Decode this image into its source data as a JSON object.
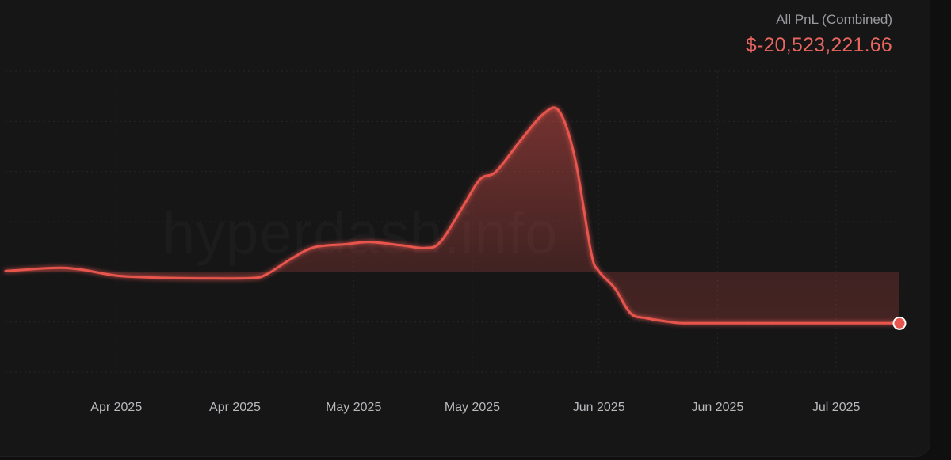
{
  "header": {
    "label": "All PnL (Combined)",
    "value": "$-20,523,221.66"
  },
  "watermark": "hyperdash.info",
  "colors": {
    "line": "#e8554e",
    "value_text": "#e8665f",
    "label_text": "#9b9b9f",
    "grid": "#262628",
    "background": "#161617"
  },
  "chart_data": {
    "type": "area",
    "title": "",
    "xlabel": "",
    "ylabel": "",
    "x_tick_labels": [
      "Apr 2025",
      "Apr 2025",
      "May 2025",
      "May 2025",
      "Jun 2025",
      "Jun 2025",
      "Jul 2025"
    ],
    "x_ticks": [
      "2025-04-01",
      "2025-04-16",
      "2025-05-01",
      "2025-05-16",
      "2025-06-01",
      "2025-06-16",
      "2025-07-01"
    ],
    "xlim": [
      "2025-03-18",
      "2025-07-09"
    ],
    "ylim": [
      -40000000,
      80000000
    ],
    "baseline": 0,
    "grid": true,
    "series": [
      {
        "values": [
          {
            "x": "2025-03-18",
            "y": 300000
          },
          {
            "x": "2025-03-21",
            "y": 1000000
          },
          {
            "x": "2025-03-25",
            "y": 1600000
          },
          {
            "x": "2025-03-28",
            "y": 700000
          },
          {
            "x": "2025-04-01",
            "y": -1500000
          },
          {
            "x": "2025-04-06",
            "y": -2300000
          },
          {
            "x": "2025-04-12",
            "y": -2600000
          },
          {
            "x": "2025-04-18",
            "y": -2500000
          },
          {
            "x": "2025-04-20",
            "y": -1000000
          },
          {
            "x": "2025-04-23",
            "y": 5000000
          },
          {
            "x": "2025-04-26",
            "y": 9800000
          },
          {
            "x": "2025-04-30",
            "y": 11000000
          },
          {
            "x": "2025-05-03",
            "y": 11900000
          },
          {
            "x": "2025-05-07",
            "y": 10600000
          },
          {
            "x": "2025-05-10",
            "y": 9500000
          },
          {
            "x": "2025-05-12",
            "y": 12000000
          },
          {
            "x": "2025-05-15",
            "y": 27000000
          },
          {
            "x": "2025-05-17",
            "y": 37000000
          },
          {
            "x": "2025-05-19",
            "y": 40000000
          },
          {
            "x": "2025-05-22",
            "y": 52000000
          },
          {
            "x": "2025-05-25",
            "y": 63000000
          },
          {
            "x": "2025-05-27",
            "y": 64000000
          },
          {
            "x": "2025-05-29",
            "y": 45000000
          },
          {
            "x": "2025-05-31",
            "y": 8000000
          },
          {
            "x": "2025-06-01",
            "y": 200000
          },
          {
            "x": "2025-06-03",
            "y": -6500000
          },
          {
            "x": "2025-06-05",
            "y": -16500000
          },
          {
            "x": "2025-06-07",
            "y": -18500000
          },
          {
            "x": "2025-06-10",
            "y": -20000000
          },
          {
            "x": "2025-06-12",
            "y": -20500000
          },
          {
            "x": "2025-06-20",
            "y": -20500000
          },
          {
            "x": "2025-07-01",
            "y": -20500000
          },
          {
            "x": "2025-07-09",
            "y": -20523221.66
          }
        ]
      }
    ]
  }
}
